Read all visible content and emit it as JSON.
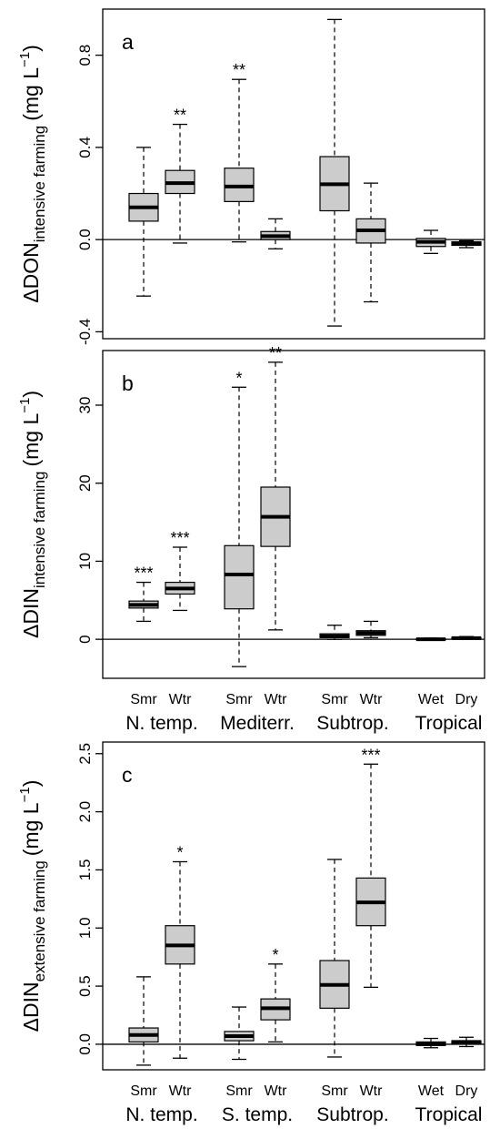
{
  "chart_data": [
    {
      "type": "box",
      "panel_letter": "a",
      "ylabel_main": "ΔDON",
      "ylabel_sub": "intensive farming",
      "ylabel_unit": "(mg L",
      "ylabel_exp": "−1",
      "ylabel_close": ")",
      "ylim": [
        -0.43,
        1.0
      ],
      "yticks": [
        -0.4,
        0.0,
        0.4,
        0.8
      ],
      "ytick_labels": [
        "-0.4",
        "0.0",
        "0.4",
        "0.8"
      ],
      "zero_line": true,
      "x_labels": [],
      "x_group_labels": [],
      "boxes": [
        {
          "min": -0.245,
          "q1": 0.08,
          "median": 0.14,
          "q3": 0.2,
          "max": 0.4,
          "sig": ""
        },
        {
          "min": -0.015,
          "q1": 0.2,
          "median": 0.245,
          "q3": 0.3,
          "max": 0.5,
          "sig": "**"
        },
        {
          "min": -0.01,
          "q1": 0.165,
          "median": 0.23,
          "q3": 0.31,
          "max": 0.695,
          "sig": "**"
        },
        {
          "min": -0.04,
          "q1": 0.0,
          "median": 0.015,
          "q3": 0.035,
          "max": 0.09,
          "sig": ""
        },
        {
          "min": -0.375,
          "q1": 0.125,
          "median": 0.24,
          "q3": 0.36,
          "max": 0.955,
          "sig": ""
        },
        {
          "min": -0.27,
          "q1": -0.015,
          "median": 0.04,
          "q3": 0.09,
          "max": 0.245,
          "sig": ""
        },
        {
          "min": -0.06,
          "q1": -0.03,
          "median": -0.01,
          "q3": 0.005,
          "max": 0.04,
          "sig": ""
        },
        {
          "min": -0.035,
          "q1": -0.025,
          "median": -0.015,
          "q3": -0.01,
          "max": -0.005,
          "sig": ""
        }
      ]
    },
    {
      "type": "box",
      "panel_letter": "b",
      "ylabel_main": "ΔDIN",
      "ylabel_sub": "intensive farming",
      "ylabel_unit": "(mg L",
      "ylabel_exp": "−1",
      "ylabel_close": ")",
      "ylim": [
        -5.0,
        37.0
      ],
      "yticks": [
        0,
        10,
        20,
        30
      ],
      "ytick_labels": [
        "0",
        "10",
        "20",
        "30"
      ],
      "zero_line": true,
      "x_labels": [
        "Smr",
        "Wtr",
        "Smr",
        "Wtr",
        "Smr",
        "Wtr",
        "Wet",
        "Dry"
      ],
      "x_group_labels": [
        "N. temp.",
        "Mediterr.",
        "Subtrop.",
        "Tropical"
      ],
      "boxes": [
        {
          "min": 2.3,
          "q1": 4.0,
          "median": 4.4,
          "q3": 4.9,
          "max": 7.3,
          "sig": "***"
        },
        {
          "min": 3.7,
          "q1": 5.8,
          "median": 6.5,
          "q3": 7.3,
          "max": 11.8,
          "sig": "***"
        },
        {
          "min": -3.5,
          "q1": 3.9,
          "median": 8.3,
          "q3": 12.0,
          "max": 32.3,
          "sig": "*"
        },
        {
          "min": 1.2,
          "q1": 11.9,
          "median": 15.7,
          "q3": 19.5,
          "max": 35.5,
          "sig": "**"
        },
        {
          "min": 0.0,
          "q1": 0.2,
          "median": 0.4,
          "q3": 0.7,
          "max": 1.8,
          "sig": ""
        },
        {
          "min": 0.2,
          "q1": 0.5,
          "median": 0.8,
          "q3": 1.1,
          "max": 2.3,
          "sig": ""
        },
        {
          "min": -0.1,
          "q1": -0.05,
          "median": 0.0,
          "q3": 0.1,
          "max": 0.15,
          "sig": ""
        },
        {
          "min": 0.0,
          "q1": 0.05,
          "median": 0.15,
          "q3": 0.25,
          "max": 0.35,
          "sig": ""
        }
      ]
    },
    {
      "type": "box",
      "panel_letter": "c",
      "ylabel_main": "ΔDIN",
      "ylabel_sub": "extensive farming",
      "ylabel_unit": "(mg L",
      "ylabel_exp": "−1",
      "ylabel_close": ")",
      "ylim": [
        -0.22,
        2.6
      ],
      "yticks": [
        0.0,
        0.5,
        1.0,
        1.5,
        2.0,
        2.5
      ],
      "ytick_labels": [
        "0.0",
        "0.5",
        "1.0",
        "1.5",
        "2.0",
        "2.5"
      ],
      "zero_line": true,
      "x_labels": [
        "Smr",
        "Wtr",
        "Smr",
        "Wtr",
        "Smr",
        "Wtr",
        "Wet",
        "Dry"
      ],
      "x_group_labels": [
        "N. temp.",
        "S. temp.",
        "Subtrop.",
        "Tropical"
      ],
      "boxes": [
        {
          "min": -0.18,
          "q1": 0.02,
          "median": 0.08,
          "q3": 0.14,
          "max": 0.58,
          "sig": ""
        },
        {
          "min": -0.12,
          "q1": 0.69,
          "median": 0.85,
          "q3": 1.02,
          "max": 1.57,
          "sig": "*"
        },
        {
          "min": -0.13,
          "q1": 0.03,
          "median": 0.07,
          "q3": 0.11,
          "max": 0.32,
          "sig": ""
        },
        {
          "min": 0.02,
          "q1": 0.21,
          "median": 0.31,
          "q3": 0.39,
          "max": 0.69,
          "sig": "*"
        },
        {
          "min": -0.11,
          "q1": 0.31,
          "median": 0.51,
          "q3": 0.72,
          "max": 1.59,
          "sig": ""
        },
        {
          "min": 0.49,
          "q1": 1.02,
          "median": 1.22,
          "q3": 1.43,
          "max": 2.41,
          "sig": "***"
        },
        {
          "min": -0.03,
          "q1": -0.01,
          "median": 0.0,
          "q3": 0.02,
          "max": 0.05,
          "sig": ""
        },
        {
          "min": -0.02,
          "q1": 0.0,
          "median": 0.02,
          "q3": 0.03,
          "max": 0.06,
          "sig": ""
        }
      ]
    }
  ],
  "colors": {
    "box_fill": "#cccccc",
    "stroke": "#000000"
  }
}
